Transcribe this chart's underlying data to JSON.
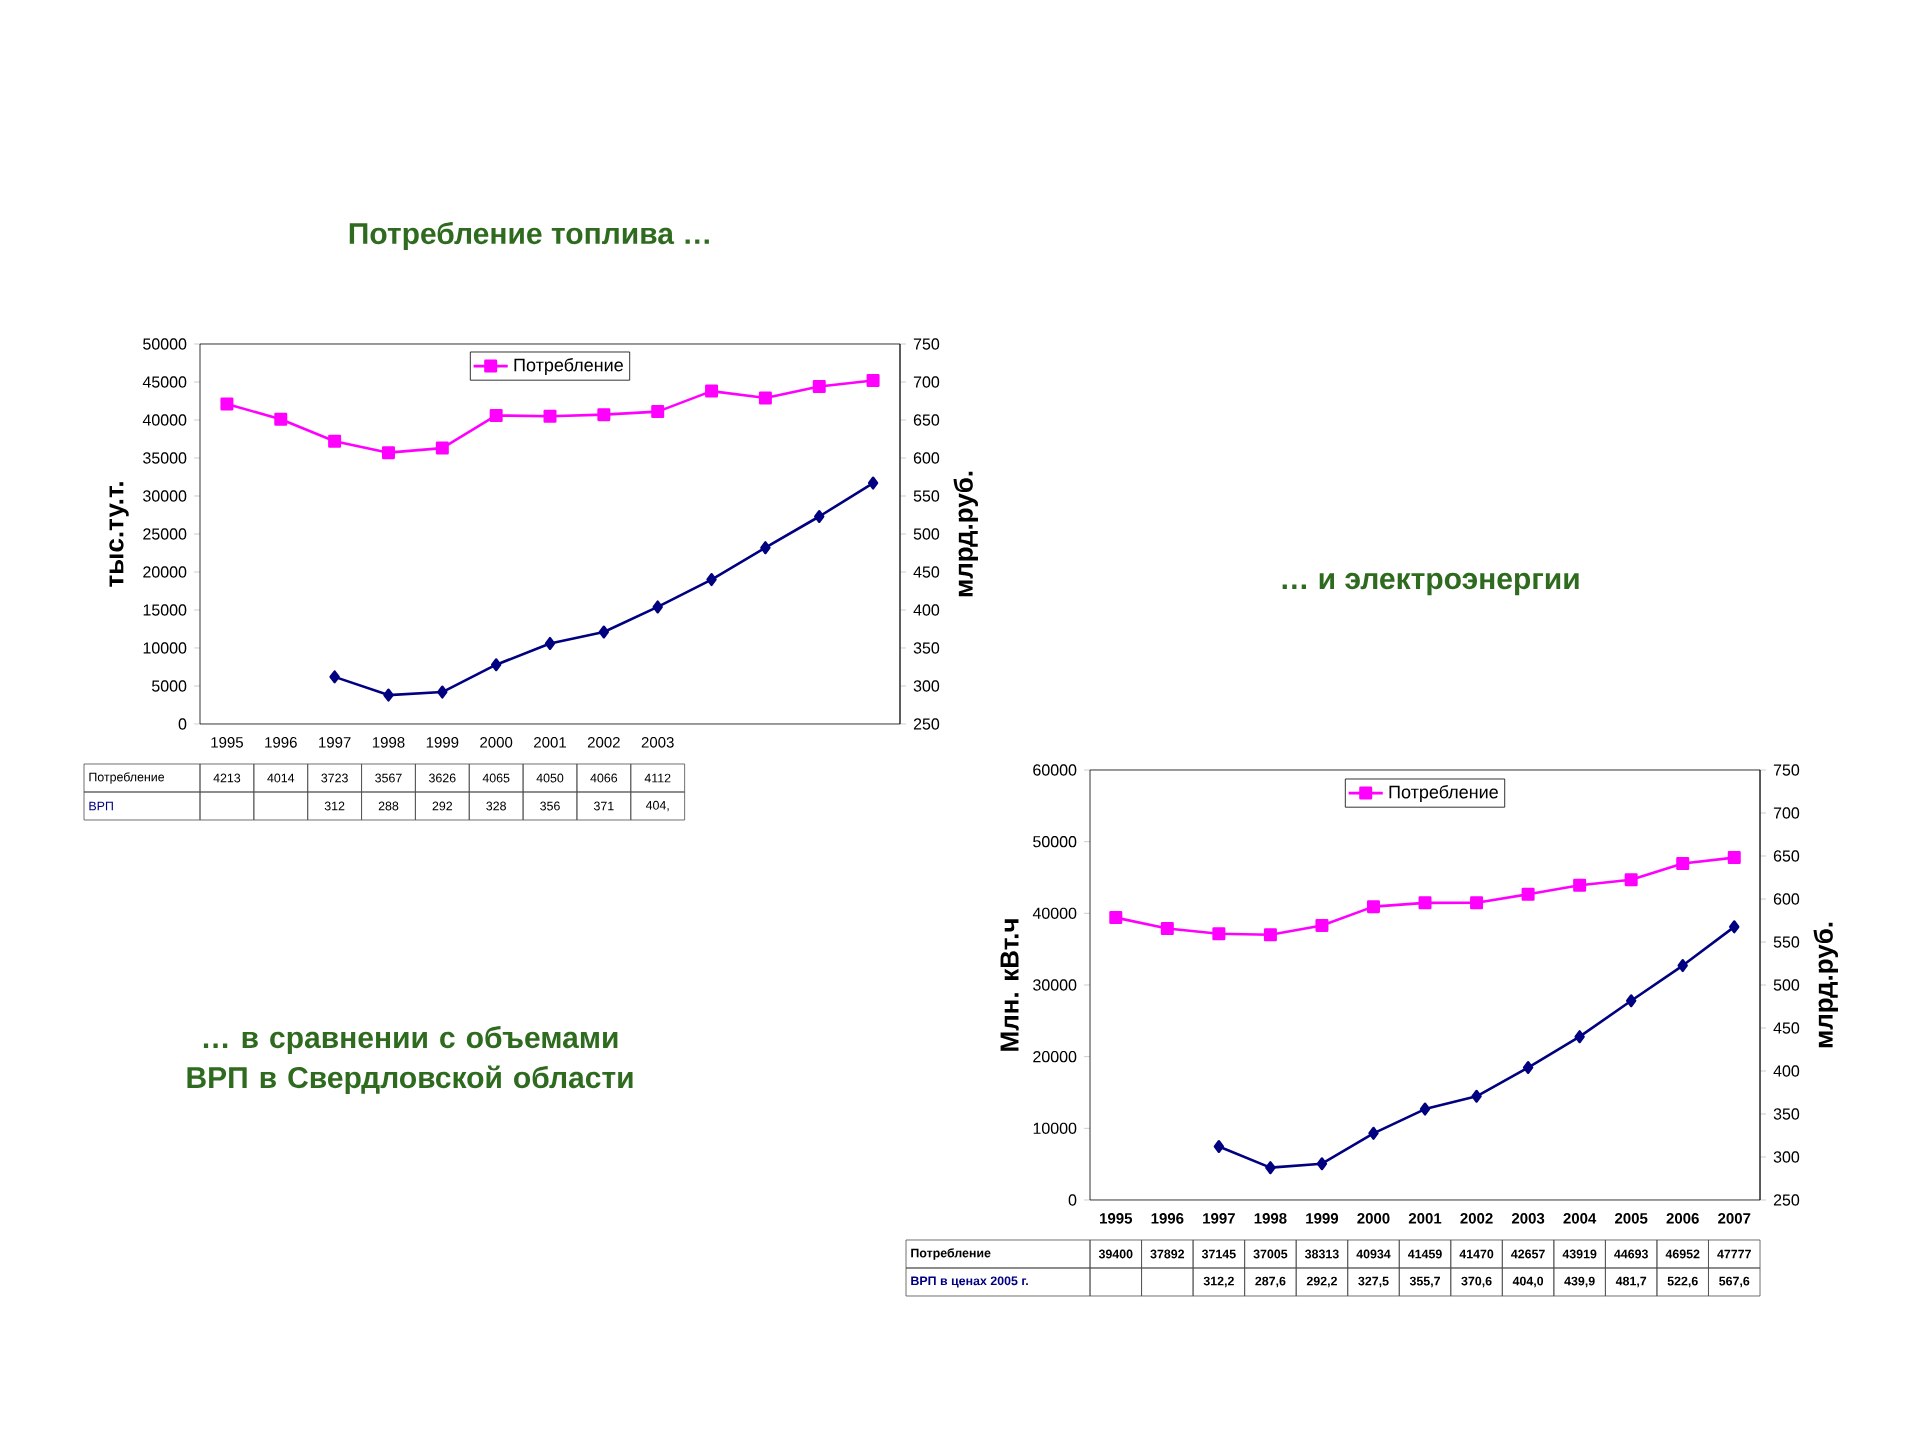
{
  "chart_data": [
    {
      "type": "line",
      "title": "Потребление топлива …",
      "subtitle": "… в сравнении с объемами ВРП в Свердловской области",
      "ylabel": "тыс.ту.т.",
      "y2label": "млрд.руб.",
      "categories": [
        "1995",
        "1996",
        "1997",
        "1998",
        "1999",
        "2000",
        "2001",
        "2002",
        "2003",
        null,
        null,
        null,
        null
      ],
      "series": [
        {
          "name": "Потребление",
          "color": "#ff00ff",
          "marker": "square",
          "values": [
            42100,
            40100,
            37200,
            35700,
            36300,
            40600,
            40500,
            40700,
            41100,
            43800,
            42900,
            44400,
            45200
          ]
        },
        {
          "name": "ВРП",
          "color": "#000080",
          "marker": "diamond",
          "axis": "y2",
          "values": [
            null,
            null,
            312,
            288,
            292,
            328,
            356,
            371,
            404,
            440,
            482,
            523,
            567
          ],
          "value_labels": [
            null,
            null,
            "312",
            "288",
            "292",
            "328",
            "356",
            "371",
            "404,",
            null,
            null,
            null,
            null
          ]
        }
      ],
      "ylim": [
        0,
        50000
      ],
      "yticks": [
        0,
        5000,
        10000,
        15000,
        20000,
        25000,
        30000,
        35000,
        40000,
        45000,
        50000
      ],
      "y2lim": [
        250,
        750
      ],
      "y2ticks": [
        250,
        300,
        350,
        400,
        450,
        500,
        550,
        600,
        650,
        700,
        750
      ],
      "legend": "top",
      "annotations": [
        "4213",
        "4014",
        "3723",
        "3567",
        "3626",
        "4065",
        "4050",
        "4066",
        "4112"
      ]
    },
    {
      "type": "line",
      "title": "… и электроэнергии",
      "ylabel": "Млн. кВт.ч",
      "y2label": "млрд.руб.",
      "categories": [
        "1995",
        "1996",
        "1997",
        "1998",
        "1999",
        "2000",
        "2001",
        "2002",
        "2003",
        "2004",
        "2005",
        "2006",
        "2007"
      ],
      "series": [
        {
          "name": "Потребление",
          "color": "#ff00ff",
          "marker": "square",
          "values": [
            39400,
            37892,
            37145,
            37005,
            38313,
            40934,
            41459,
            41470,
            42657,
            43919,
            44693,
            46952,
            47777
          ],
          "value_labels": [
            "39400",
            "37892",
            "37145",
            "37005",
            "38313",
            "40934",
            "41459",
            "41470",
            "42657",
            "43919",
            "44693",
            "46952",
            "47777"
          ]
        },
        {
          "name": "ВРП в ценах 2005 г.",
          "color": "#000080",
          "marker": "diamond",
          "axis": "y2",
          "values": [
            null,
            null,
            312.2,
            287.6,
            292.2,
            327.5,
            355.7,
            370.6,
            404.0,
            439.9,
            481.7,
            522.6,
            567.6
          ],
          "value_labels": [
            null,
            null,
            "312,2",
            "287,6",
            "292,2",
            "327,5",
            "355,7",
            "370,6",
            "404,0",
            "439,9",
            "481,7",
            "522,6",
            "567,6"
          ]
        }
      ],
      "ylim": [
        0,
        60000
      ],
      "yticks": [
        0,
        10000,
        20000,
        30000,
        40000,
        50000,
        60000
      ],
      "y2lim": [
        250,
        750
      ],
      "y2ticks": [
        250,
        300,
        350,
        400,
        450,
        500,
        550,
        600,
        650,
        700,
        750
      ],
      "legend": "top"
    }
  ]
}
